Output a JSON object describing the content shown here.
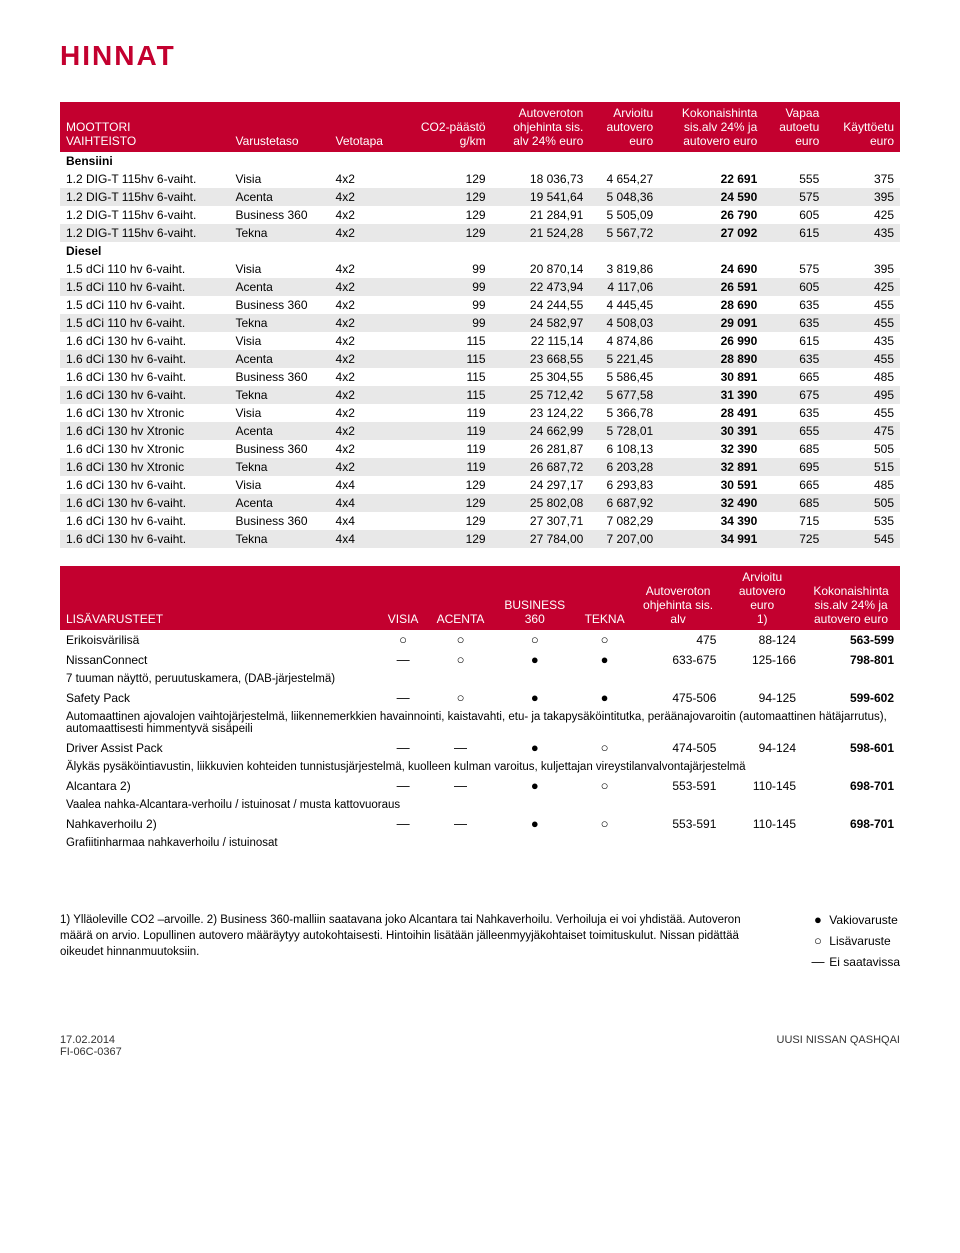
{
  "title": "HINNAT",
  "headers": {
    "moottori": "MOOTTORI\nVAIHTEISTO",
    "varustetaso": "Varustetaso",
    "vetotapa": "Vetotapa",
    "co2": "CO2-päästö\ng/km",
    "avoh": "Autoveroton\nohjehinta sis.\nalv 24% euro",
    "arv": "Arvioitu\nautovero\neuro",
    "kok": "Kokonaishinta\nsis.alv 24% ja\nautovero euro",
    "vap": "Vapaa\nautoetu\neuro",
    "kay": "Käyttöetu\neuro"
  },
  "cat_bensiini": "Bensiini",
  "cat_diesel": "Diesel",
  "rows": [
    {
      "shade": false,
      "m": "1.2 DIG-T 115hv 6-vaiht.",
      "v": "Visia",
      "d": "4x2",
      "c": "129",
      "p1": "18 036,73",
      "p2": "4 654,27",
      "p3": "22 691",
      "p4": "555",
      "p5": "375"
    },
    {
      "shade": true,
      "m": "1.2 DIG-T 115hv 6-vaiht.",
      "v": "Acenta",
      "d": "4x2",
      "c": "129",
      "p1": "19 541,64",
      "p2": "5 048,36",
      "p3": "24 590",
      "p4": "575",
      "p5": "395"
    },
    {
      "shade": false,
      "m": "1.2 DIG-T 115hv 6-vaiht.",
      "v": "Business 360",
      "d": "4x2",
      "c": "129",
      "p1": "21 284,91",
      "p2": "5 505,09",
      "p3": "26 790",
      "p4": "605",
      "p5": "425"
    },
    {
      "shade": true,
      "m": "1.2 DIG-T 115hv 6-vaiht.",
      "v": "Tekna",
      "d": "4x2",
      "c": "129",
      "p1": "21 524,28",
      "p2": "5 567,72",
      "p3": "27 092",
      "p4": "615",
      "p5": "435"
    }
  ],
  "rows_diesel": [
    {
      "shade": false,
      "m": "1.5 dCi 110 hv 6-vaiht.",
      "v": "Visia",
      "d": "4x2",
      "c": "99",
      "p1": "20 870,14",
      "p2": "3 819,86",
      "p3": "24 690",
      "p4": "575",
      "p5": "395"
    },
    {
      "shade": true,
      "m": "1.5 dCi 110 hv 6-vaiht.",
      "v": "Acenta",
      "d": "4x2",
      "c": "99",
      "p1": "22 473,94",
      "p2": "4 117,06",
      "p3": "26 591",
      "p4": "605",
      "p5": "425"
    },
    {
      "shade": false,
      "m": "1.5 dCi 110 hv 6-vaiht.",
      "v": "Business 360",
      "d": "4x2",
      "c": "99",
      "p1": "24 244,55",
      "p2": "4 445,45",
      "p3": "28 690",
      "p4": "635",
      "p5": "455"
    },
    {
      "shade": true,
      "m": "1.5 dCi 110 hv 6-vaiht.",
      "v": "Tekna",
      "d": "4x2",
      "c": "99",
      "p1": "24 582,97",
      "p2": "4 508,03",
      "p3": "29 091",
      "p4": "635",
      "p5": "455"
    },
    {
      "shade": false,
      "m": "1.6 dCi 130 hv 6-vaiht.",
      "v": "Visia",
      "d": "4x2",
      "c": "115",
      "p1": "22 115,14",
      "p2": "4 874,86",
      "p3": "26 990",
      "p4": "615",
      "p5": "435"
    },
    {
      "shade": true,
      "m": "1.6 dCi 130 hv 6-vaiht.",
      "v": "Acenta",
      "d": "4x2",
      "c": "115",
      "p1": "23 668,55",
      "p2": "5 221,45",
      "p3": "28 890",
      "p4": "635",
      "p5": "455"
    },
    {
      "shade": false,
      "m": "1.6 dCi 130 hv 6-vaiht.",
      "v": "Business 360",
      "d": "4x2",
      "c": "115",
      "p1": "25 304,55",
      "p2": "5 586,45",
      "p3": "30 891",
      "p4": "665",
      "p5": "485"
    },
    {
      "shade": true,
      "m": "1.6 dCi 130 hv 6-vaiht.",
      "v": "Tekna",
      "d": "4x2",
      "c": "115",
      "p1": "25 712,42",
      "p2": "5 677,58",
      "p3": "31 390",
      "p4": "675",
      "p5": "495"
    },
    {
      "shade": false,
      "m": "1.6 dCi 130 hv Xtronic",
      "v": "Visia",
      "d": "4x2",
      "c": "119",
      "p1": "23 124,22",
      "p2": "5 366,78",
      "p3": "28 491",
      "p4": "635",
      "p5": "455"
    },
    {
      "shade": true,
      "m": "1.6 dCi 130 hv Xtronic",
      "v": "Acenta",
      "d": "4x2",
      "c": "119",
      "p1": "24 662,99",
      "p2": "5 728,01",
      "p3": "30 391",
      "p4": "655",
      "p5": "475"
    },
    {
      "shade": false,
      "m": "1.6 dCi 130 hv Xtronic",
      "v": "Business 360",
      "d": "4x2",
      "c": "119",
      "p1": "26 281,87",
      "p2": "6 108,13",
      "p3": "32 390",
      "p4": "685",
      "p5": "505"
    },
    {
      "shade": true,
      "m": "1.6 dCi 130 hv Xtronic",
      "v": "Tekna",
      "d": "4x2",
      "c": "119",
      "p1": "26 687,72",
      "p2": "6 203,28",
      "p3": "32 891",
      "p4": "695",
      "p5": "515"
    },
    {
      "shade": false,
      "m": "1.6 dCi 130 hv 6-vaiht.",
      "v": "Visia",
      "d": "4x4",
      "c": "129",
      "p1": "24 297,17",
      "p2": "6 293,83",
      "p3": "30 591",
      "p4": "665",
      "p5": "485"
    },
    {
      "shade": true,
      "m": "1.6 dCi 130 hv 6-vaiht.",
      "v": "Acenta",
      "d": "4x4",
      "c": "129",
      "p1": "25 802,08",
      "p2": "6 687,92",
      "p3": "32 490",
      "p4": "685",
      "p5": "505"
    },
    {
      "shade": false,
      "m": "1.6 dCi 130 hv 6-vaiht.",
      "v": "Business 360",
      "d": "4x4",
      "c": "129",
      "p1": "27 307,71",
      "p2": "7 082,29",
      "p3": "34 390",
      "p4": "715",
      "p5": "535"
    },
    {
      "shade": true,
      "m": "1.6 dCi 130 hv 6-vaiht.",
      "v": "Tekna",
      "d": "4x4",
      "c": "129",
      "p1": "27 784,00",
      "p2": "7 207,00",
      "p3": "34 991",
      "p4": "725",
      "p5": "545"
    }
  ],
  "opt_headers": {
    "lisa": "LISÄVARUSTEET",
    "visia": "VISIA",
    "acenta": "ACENTA",
    "b360": "BUSINESS\n360",
    "tekna": "TEKNA",
    "avoh": "Autoveroton\nohjehinta sis.\nalv",
    "arv": "Arvioitu\nautovero euro\n1)",
    "kok": "Kokonaishinta\nsis.alv 24% ja\nautovero euro"
  },
  "options": [
    {
      "name": "Erikoisvärilisä",
      "desc": "",
      "s": [
        "○",
        "○",
        "○",
        "○"
      ],
      "p1": "475",
      "p2": "88-124",
      "p3": "563-599"
    },
    {
      "name": "NissanConnect",
      "desc": "7 tuuman näyttö, peruutuskamera, (DAB-järjestelmä)",
      "s": [
        "—",
        "○",
        "●",
        "●"
      ],
      "p1": "633-675",
      "p2": "125-166",
      "p3": "798-801"
    },
    {
      "name": "Safety Pack",
      "desc": "Automaattinen ajovalojen vaihtojärjestelmä, liikennemerkkien havainnointi, kaistavahti, etu- ja takapysäköintitutka, peräänajovaroitin (automaattinen hätäjarrutus), automaattisesti himmentyvä sisäpeili",
      "s": [
        "—",
        "○",
        "●",
        "●"
      ],
      "p1": "475-506",
      "p2": "94-125",
      "p3": "599-602"
    },
    {
      "name": "Driver Assist Pack",
      "desc": "Älykäs pysäköintiavustin, liikkuvien kohteiden tunnistusjärjestelmä, kuolleen kulman varoitus, kuljettajan vireystilanvalvontajärjestelmä",
      "s": [
        "—",
        "—",
        "●",
        "○"
      ],
      "p1": "474-505",
      "p2": "94-124",
      "p3": "598-601"
    },
    {
      "name": "Alcantara 2)",
      "desc": "Vaalea nahka-Alcantara-verhoilu / istuinosat / musta kattovuoraus",
      "s": [
        "—",
        "—",
        "●",
        "○"
      ],
      "p1": "553-591",
      "p2": "110-145",
      "p3": "698-701"
    },
    {
      "name": "Nahkaverhoilu 2)",
      "desc": "Grafiitinharmaa nahkaverhoilu / istuinosat",
      "s": [
        "—",
        "—",
        "●",
        "○"
      ],
      "p1": "553-591",
      "p2": "110-145",
      "p3": "698-701"
    }
  ],
  "footnote_text": "1) Ylläoleville CO2 –arvoille. 2) Business 360-malliin saatavana joko Alcantara tai Nahkaverhoilu. Verhoiluja ei voi yhdistää. Autoveron määrä on arvio. Lopullinen autovero määräytyy autokohtaisesti. Hintoihin lisätään jälleenmyyjäkohtaiset toimituskulut. Nissan pidättää oikeudet hinnanmuutoksiin.",
  "legend": {
    "std": "Vakiovaruste",
    "opt": "Lisävaruste",
    "na": "Ei saatavissa"
  },
  "footer": {
    "date": "17.02.2014",
    "code": "FI-06C-0367",
    "model": "UUSI NISSAN QASHQAI"
  }
}
